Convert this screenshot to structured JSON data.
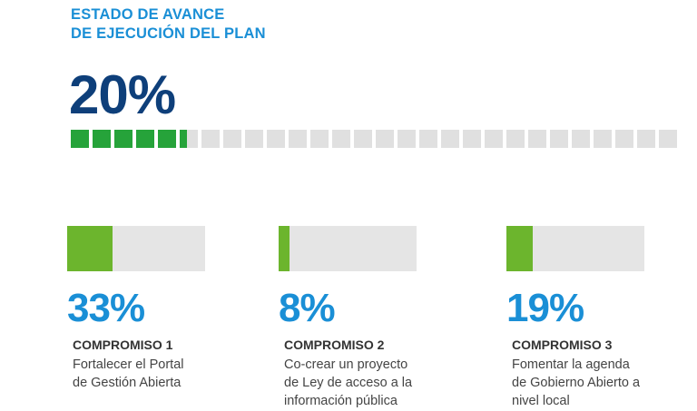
{
  "header": {
    "title_line1": "ESTADO DE AVANCE",
    "title_line2": "DE EJECUCIÓN DEL PLAN"
  },
  "overall": {
    "percent_label": "20%",
    "progress": 0.2
  },
  "colors": {
    "title_blue": "#1a8fd6",
    "dark_blue": "#0e3f7a",
    "segment_green": "#26a33a",
    "bar_green": "#6cb52d",
    "track_gray": "#e0e0e0"
  },
  "commitments": [
    {
      "percent_label": "33%",
      "progress": 0.33,
      "label": "COMPROMISO 1",
      "desc_line1": "Fortalecer el Portal",
      "desc_line2": "de Gestión Abierta",
      "desc_line3": ""
    },
    {
      "percent_label": "8%",
      "progress": 0.08,
      "label": "COMPROMISO 2",
      "desc_line1": "Co-crear un proyecto",
      "desc_line2": "de Ley de acceso a la",
      "desc_line3": "información pública"
    },
    {
      "percent_label": "19%",
      "progress": 0.19,
      "label": "COMPROMISO 3",
      "desc_line1": "Fomentar la agenda",
      "desc_line2": "de Gobierno Abierto a",
      "desc_line3": "nivel local"
    }
  ]
}
